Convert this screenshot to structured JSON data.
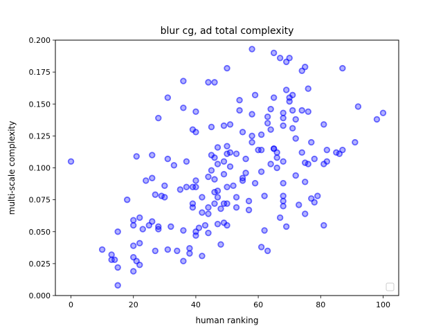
{
  "chart_data": {
    "type": "scatter",
    "title": "blur cg, ad total complexity",
    "xlabel": "human ranking",
    "ylabel": "multi-scale complexity",
    "xlim": [
      -5,
      105
    ],
    "ylim": [
      0,
      0.2
    ],
    "xticks": [
      "0",
      "20",
      "40",
      "60",
      "80",
      "100"
    ],
    "yticks": [
      "0.000",
      "0.025",
      "0.050",
      "0.075",
      "0.100",
      "0.125",
      "0.150",
      "0.175",
      "0.200"
    ],
    "grid": false,
    "legend": "bottom-right (empty)",
    "marker_color": "#0000ff",
    "points": [
      [
        0,
        0.105
      ],
      [
        10,
        0.036
      ],
      [
        13,
        0.032
      ],
      [
        13,
        0.028
      ],
      [
        14,
        0.028
      ],
      [
        15,
        0.022
      ],
      [
        15,
        0.008
      ],
      [
        15,
        0.05
      ],
      [
        18,
        0.075
      ],
      [
        20,
        0.055
      ],
      [
        20,
        0.059
      ],
      [
        20,
        0.039
      ],
      [
        20,
        0.03
      ],
      [
        20,
        0.019
      ],
      [
        21,
        0.027
      ],
      [
        21,
        0.109
      ],
      [
        22,
        0.041
      ],
      [
        22,
        0.061
      ],
      [
        22,
        0.024
      ],
      [
        23,
        0.052
      ],
      [
        24,
        0.09
      ],
      [
        25,
        0.055
      ],
      [
        26,
        0.092
      ],
      [
        26,
        0.058
      ],
      [
        26,
        0.11
      ],
      [
        27,
        0.035
      ],
      [
        27,
        0.079
      ],
      [
        28,
        0.139
      ],
      [
        28,
        0.052
      ],
      [
        28,
        0.054
      ],
      [
        29,
        0.078
      ],
      [
        30,
        0.077
      ],
      [
        30,
        0.086
      ],
      [
        31,
        0.155
      ],
      [
        31,
        0.107
      ],
      [
        31,
        0.036
      ],
      [
        32,
        0.054
      ],
      [
        33,
        0.102
      ],
      [
        34,
        0.035
      ],
      [
        35,
        0.083
      ],
      [
        36,
        0.168
      ],
      [
        36,
        0.147
      ],
      [
        36,
        0.051
      ],
      [
        36,
        0.027
      ],
      [
        37,
        0.085
      ],
      [
        37,
        0.105
      ],
      [
        38,
        0.037
      ],
      [
        38,
        0.033
      ],
      [
        39,
        0.13
      ],
      [
        39,
        0.085
      ],
      [
        39,
        0.072
      ],
      [
        39,
        0.069
      ],
      [
        40,
        0.128
      ],
      [
        40,
        0.144
      ],
      [
        40,
        0.09
      ],
      [
        40,
        0.085
      ],
      [
        40,
        0.05
      ],
      [
        40,
        0.047
      ],
      [
        41,
        0.053
      ],
      [
        42,
        0.031
      ],
      [
        42,
        0.077
      ],
      [
        42,
        0.065
      ],
      [
        43,
        0.055
      ],
      [
        44,
        0.167
      ],
      [
        44,
        0.093
      ],
      [
        44,
        0.069
      ],
      [
        44,
        0.064
      ],
      [
        44,
        0.049
      ],
      [
        45,
        0.132
      ],
      [
        45,
        0.11
      ],
      [
        45,
        0.098
      ],
      [
        46,
        0.167
      ],
      [
        46,
        0.108
      ],
      [
        46,
        0.091
      ],
      [
        46,
        0.081
      ],
      [
        46,
        0.072
      ],
      [
        47,
        0.116
      ],
      [
        47,
        0.103
      ],
      [
        47,
        0.082
      ],
      [
        47,
        0.077
      ],
      [
        47,
        0.056
      ],
      [
        48,
        0.068
      ],
      [
        48,
        0.04
      ],
      [
        49,
        0.133
      ],
      [
        49,
        0.105
      ],
      [
        49,
        0.095
      ],
      [
        49,
        0.072
      ],
      [
        49,
        0.057
      ],
      [
        50,
        0.178
      ],
      [
        50,
        0.117
      ],
      [
        50,
        0.111
      ],
      [
        50,
        0.085
      ],
      [
        50,
        0.072
      ],
      [
        50,
        0.055
      ],
      [
        51,
        0.134
      ],
      [
        51,
        0.112
      ],
      [
        51,
        0.101
      ],
      [
        52,
        0.086
      ],
      [
        53,
        0.111
      ],
      [
        53,
        0.077
      ],
      [
        53,
        0.069
      ],
      [
        54,
        0.153
      ],
      [
        54,
        0.145
      ],
      [
        55,
        0.128
      ],
      [
        55,
        0.092
      ],
      [
        55,
        0.09
      ],
      [
        56,
        0.107
      ],
      [
        56,
        0.096
      ],
      [
        57,
        0.074
      ],
      [
        57,
        0.067
      ],
      [
        58,
        0.193
      ],
      [
        58,
        0.142
      ],
      [
        58,
        0.125
      ],
      [
        58,
        0.12
      ],
      [
        59,
        0.157
      ],
      [
        59,
        0.088
      ],
      [
        60,
        0.114
      ],
      [
        61,
        0.126
      ],
      [
        61,
        0.114
      ],
      [
        61,
        0.097
      ],
      [
        61,
        0.038
      ],
      [
        62,
        0.078
      ],
      [
        62,
        0.051
      ],
      [
        63,
        0.14
      ],
      [
        63,
        0.135
      ],
      [
        63,
        0.035
      ],
      [
        64,
        0.146
      ],
      [
        64,
        0.13
      ],
      [
        64,
        0.103
      ],
      [
        65,
        0.19
      ],
      [
        65,
        0.155
      ],
      [
        65,
        0.115
      ],
      [
        65,
        0.115
      ],
      [
        66,
        0.112
      ],
      [
        66,
        0.108
      ],
      [
        66,
        0.1
      ],
      [
        67,
        0.186
      ],
      [
        67,
        0.061
      ],
      [
        68,
        0.143
      ],
      [
        68,
        0.139
      ],
      [
        68,
        0.133
      ],
      [
        68,
        0.105
      ],
      [
        68,
        0.088
      ],
      [
        68,
        0.078
      ],
      [
        68,
        0.074
      ],
      [
        68,
        0.07
      ],
      [
        69,
        0.183
      ],
      [
        69,
        0.161
      ],
      [
        69,
        0.054
      ],
      [
        70,
        0.186
      ],
      [
        70,
        0.155
      ],
      [
        70,
        0.152
      ],
      [
        71,
        0.157
      ],
      [
        71,
        0.145
      ],
      [
        71,
        0.131
      ],
      [
        72,
        0.138
      ],
      [
        72,
        0.123
      ],
      [
        72,
        0.094
      ],
      [
        73,
        0.071
      ],
      [
        74,
        0.176
      ],
      [
        74,
        0.145
      ],
      [
        74,
        0.112
      ],
      [
        75,
        0.179
      ],
      [
        75,
        0.104
      ],
      [
        75,
        0.089
      ],
      [
        75,
        0.064
      ],
      [
        76,
        0.162
      ],
      [
        76,
        0.144
      ],
      [
        76,
        0.103
      ],
      [
        77,
        0.12
      ],
      [
        77,
        0.076
      ],
      [
        78,
        0.107
      ],
      [
        78,
        0.073
      ],
      [
        79,
        0.078
      ],
      [
        81,
        0.134
      ],
      [
        81,
        0.103
      ],
      [
        81,
        0.055
      ],
      [
        82,
        0.114
      ],
      [
        82,
        0.105
      ],
      [
        85,
        0.112
      ],
      [
        86,
        0.111
      ],
      [
        87,
        0.178
      ],
      [
        87,
        0.114
      ],
      [
        91,
        0.12
      ],
      [
        92,
        0.148
      ],
      [
        98,
        0.138
      ],
      [
        100,
        0.143
      ]
    ]
  }
}
